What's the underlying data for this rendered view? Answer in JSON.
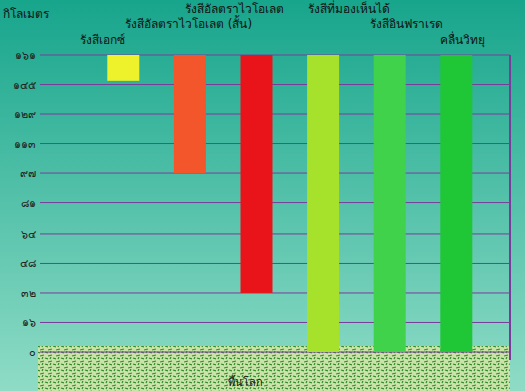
{
  "chart_data": {
    "type": "bar",
    "y_label": "กิโลเมตร",
    "categories": [
      "รังสีเอกซ์",
      "รังสีอัลตราไวโอเลต (สั้น)",
      "รังสีอัลตราไวโอเลต",
      "รังสีที่มองเห็นได้",
      "รังสีอินฟราเรด",
      "คลื่นวิทยุ"
    ],
    "values": [
      147,
      97,
      32,
      0,
      0,
      0
    ],
    "colors": [
      "#eef22a",
      "#f2562a",
      "#e8141a",
      "#a6e22c",
      "#3fd24a",
      "#1fc636"
    ],
    "ylim": [
      0,
      161
    ],
    "yticks": [
      {
        "value": 0,
        "label": "๐"
      },
      {
        "value": 16,
        "label": "๑๖"
      },
      {
        "value": 32,
        "label": "๓๒"
      },
      {
        "value": 48,
        "label": "๔๘"
      },
      {
        "value": 64,
        "label": "๖๔"
      },
      {
        "value": 81,
        "label": "๘๑"
      },
      {
        "value": 97,
        "label": "๙๗"
      },
      {
        "value": 113,
        "label": "๑๑๓"
      },
      {
        "value": 129,
        "label": "๑๒๙"
      },
      {
        "value": 145,
        "label": "๑๔๕"
      },
      {
        "value": 161,
        "label": "๑๖๑"
      }
    ],
    "grid": true,
    "annotations": [
      "พื้นโลก"
    ]
  }
}
